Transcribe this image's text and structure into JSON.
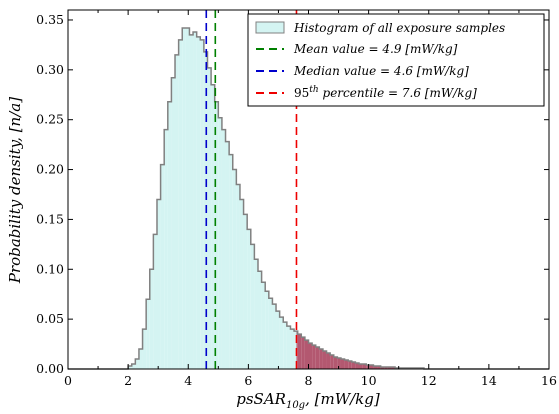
{
  "chart_data": {
    "type": "area",
    "xlabel": "psSAR10g, [mW/kg]",
    "xlabel_parts": {
      "main": "psSAR",
      "sub": "10g",
      "rest": ", [mW/kg]"
    },
    "ylabel": "Probability density, [n/a]",
    "xlim": [
      0,
      16
    ],
    "ylim": [
      0,
      0.36
    ],
    "xticks": [
      0,
      2,
      4,
      6,
      8,
      10,
      12,
      14,
      16
    ],
    "yticks": [
      0.0,
      0.05,
      0.1,
      0.15,
      0.2,
      0.25,
      0.3,
      0.35
    ],
    "xtick_labels": [
      "0",
      "2",
      "4",
      "6",
      "8",
      "10",
      "12",
      "14",
      "16"
    ],
    "ytick_labels": [
      "0.00",
      "0.05",
      "0.10",
      "0.15",
      "0.20",
      "0.25",
      "0.30",
      "0.35"
    ],
    "grid": false,
    "legend_position": "top-right",
    "histogram": {
      "name": "Histogram of all exposure samples",
      "bin_width": 0.12,
      "x": [
        2.0,
        2.12,
        2.24,
        2.36,
        2.48,
        2.6,
        2.72,
        2.84,
        2.96,
        3.08,
        3.2,
        3.32,
        3.44,
        3.56,
        3.68,
        3.8,
        3.92,
        4.04,
        4.16,
        4.28,
        4.4,
        4.52,
        4.64,
        4.76,
        4.88,
        5.0,
        5.12,
        5.24,
        5.36,
        5.48,
        5.6,
        5.72,
        5.84,
        5.96,
        6.08,
        6.2,
        6.32,
        6.44,
        6.56,
        6.68,
        6.8,
        6.92,
        7.04,
        7.16,
        7.28,
        7.4,
        7.52,
        7.64,
        7.76,
        7.88,
        8.0,
        8.12,
        8.24,
        8.36,
        8.48,
        8.6,
        8.72,
        8.84,
        8.96,
        9.08,
        9.2,
        9.32,
        9.44,
        9.56,
        9.68,
        9.8,
        9.92,
        10.04,
        10.16,
        10.28,
        10.4,
        10.52,
        10.64,
        10.76,
        10.88,
        11.0,
        11.12,
        11.24,
        11.36,
        11.48,
        11.6,
        11.72,
        11.84,
        11.96
      ],
      "y": [
        0.003,
        0.005,
        0.01,
        0.02,
        0.04,
        0.07,
        0.1,
        0.135,
        0.17,
        0.205,
        0.24,
        0.268,
        0.292,
        0.315,
        0.33,
        0.342,
        0.342,
        0.335,
        0.338,
        0.333,
        0.33,
        0.318,
        0.302,
        0.285,
        0.268,
        0.252,
        0.24,
        0.228,
        0.215,
        0.2,
        0.185,
        0.17,
        0.155,
        0.14,
        0.125,
        0.11,
        0.098,
        0.087,
        0.078,
        0.071,
        0.065,
        0.058,
        0.052,
        0.047,
        0.043,
        0.04,
        0.038,
        0.035,
        0.032,
        0.029,
        0.026,
        0.024,
        0.022,
        0.02,
        0.018,
        0.016,
        0.014,
        0.012,
        0.011,
        0.01,
        0.009,
        0.008,
        0.007,
        0.006,
        0.005,
        0.005,
        0.004,
        0.004,
        0.003,
        0.003,
        0.002,
        0.002,
        0.002,
        0.002,
        0.001,
        0.001,
        0.001,
        0.001,
        0.001,
        0.001,
        0.001,
        0.001,
        0.0,
        0.0
      ]
    },
    "series": [
      {
        "name": "Mean value = 4.9 [mW/kg]",
        "x": 4.9,
        "color": "#008000",
        "style": "dashed"
      },
      {
        "name": "Median value = 4.6 [mW/kg]",
        "x": 4.6,
        "color": "#0000cc",
        "style": "dashed"
      },
      {
        "name": "95th percentile = 7.6 [mW/kg]",
        "x": 7.6,
        "color": "#ee0000",
        "style": "dashed"
      }
    ],
    "legend": {
      "hist_label": "Histogram of all exposure samples",
      "mean_label": "Mean value = 4.9 [mW/kg]",
      "median_label": "Median value = 4.6 [mW/kg]",
      "p95_label_num": "95",
      "p95_label_sup": "th",
      "p95_label_rest": " percentile = 7.6 [mW/kg]"
    },
    "colors": {
      "hist_fill": "#d4f4f2",
      "hist_edge": "#808080",
      "tail_fill": "#b35870"
    }
  }
}
